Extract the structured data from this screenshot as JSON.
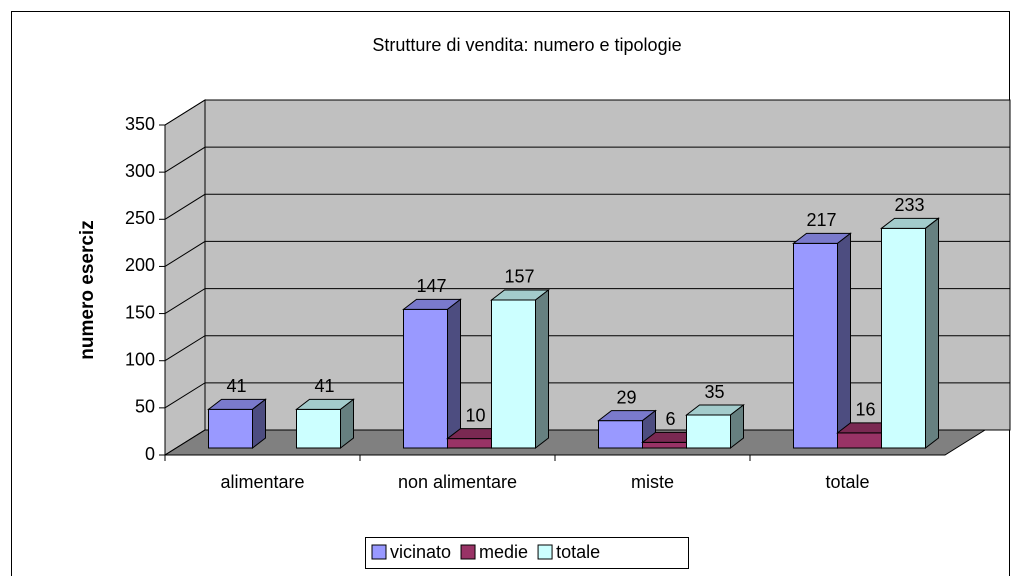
{
  "chart_data": {
    "type": "bar3d",
    "title": "Strutture di vendita: numero e tipologie",
    "y_axis_label": "numero eserciz",
    "categories": [
      "alimentare",
      "non alimentare",
      "miste",
      "totale"
    ],
    "series": [
      {
        "name": "vicinato",
        "color": "#9999ff",
        "values": [
          41,
          147,
          29,
          217
        ]
      },
      {
        "name": "medie",
        "color": "#993366",
        "values": [
          null,
          10,
          6,
          16
        ]
      },
      {
        "name": "totale",
        "color": "#ccffff",
        "values": [
          41,
          157,
          35,
          233
        ]
      }
    ],
    "ylim": [
      0,
      350
    ],
    "yticks": [
      0,
      50,
      100,
      150,
      200,
      250,
      300,
      350
    ],
    "grid": true,
    "legend": "bottom"
  }
}
